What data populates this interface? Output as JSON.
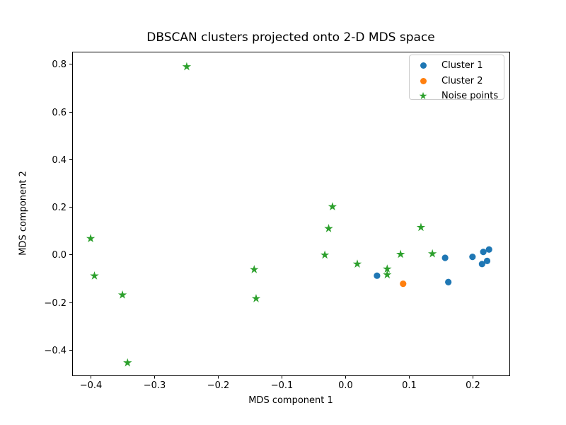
{
  "figure": {
    "title": "DBSCAN clusters projected onto 2-D MDS space",
    "xlabel": "MDS component 1",
    "ylabel": "MDS component 2",
    "background": "#ffffff",
    "frame_color": "#000000"
  },
  "legend": {
    "items": [
      {
        "label": "Cluster 1",
        "marker": "circle",
        "color": "#1f77b4"
      },
      {
        "label": "Cluster 2",
        "marker": "circle",
        "color": "#ff7f0e"
      },
      {
        "label": "Noise points",
        "marker": "star",
        "color": "#2ca02c"
      }
    ]
  },
  "chart_data": {
    "type": "scatter",
    "title": "DBSCAN clusters projected onto 2-D MDS space",
    "xlabel": "MDS component 1",
    "ylabel": "MDS component 2",
    "xlim": [
      -0.429,
      0.258
    ],
    "ylim": [
      -0.508,
      0.852
    ],
    "grid": false,
    "legend_position": "upper right",
    "x_ticks": {
      "values": [
        -0.4,
        -0.3,
        -0.2,
        -0.1,
        0.0,
        0.1,
        0.2
      ],
      "labels": [
        "−0.4",
        "−0.3",
        "−0.2",
        "−0.1",
        "0.0",
        "0.1",
        "0.2"
      ]
    },
    "y_ticks": {
      "values": [
        -0.4,
        -0.2,
        0.0,
        0.2,
        0.4,
        0.6,
        0.8
      ],
      "labels": [
        "−0.4",
        "−0.2",
        "0.0",
        "0.2",
        "0.4",
        "0.6",
        "0.8"
      ]
    },
    "series": [
      {
        "name": "Cluster 1",
        "marker": "circle",
        "color": "#1f77b4",
        "points": [
          [
            0.05,
            -0.089
          ],
          [
            0.157,
            -0.014
          ],
          [
            0.162,
            -0.116
          ],
          [
            0.2,
            -0.01
          ],
          [
            0.215,
            -0.04
          ],
          [
            0.223,
            -0.027
          ],
          [
            0.217,
            0.011
          ],
          [
            0.226,
            0.021
          ]
        ]
      },
      {
        "name": "Cluster 2",
        "marker": "circle",
        "color": "#ff7f0e",
        "points": [
          [
            0.091,
            -0.123
          ]
        ]
      },
      {
        "name": "Noise points",
        "marker": "star",
        "color": "#2ca02c",
        "points": [
          [
            -0.4,
            0.067
          ],
          [
            -0.394,
            -0.09
          ],
          [
            -0.35,
            -0.17
          ],
          [
            -0.342,
            -0.455
          ],
          [
            -0.249,
            0.789
          ],
          [
            -0.143,
            -0.063
          ],
          [
            -0.14,
            -0.185
          ],
          [
            -0.032,
            -0.002
          ],
          [
            -0.026,
            0.109
          ],
          [
            -0.02,
            0.201
          ],
          [
            0.019,
            -0.04
          ],
          [
            0.066,
            -0.061
          ],
          [
            0.066,
            -0.085
          ],
          [
            0.087,
            0.001
          ],
          [
            0.119,
            0.114
          ],
          [
            0.137,
            0.003
          ]
        ]
      }
    ]
  }
}
